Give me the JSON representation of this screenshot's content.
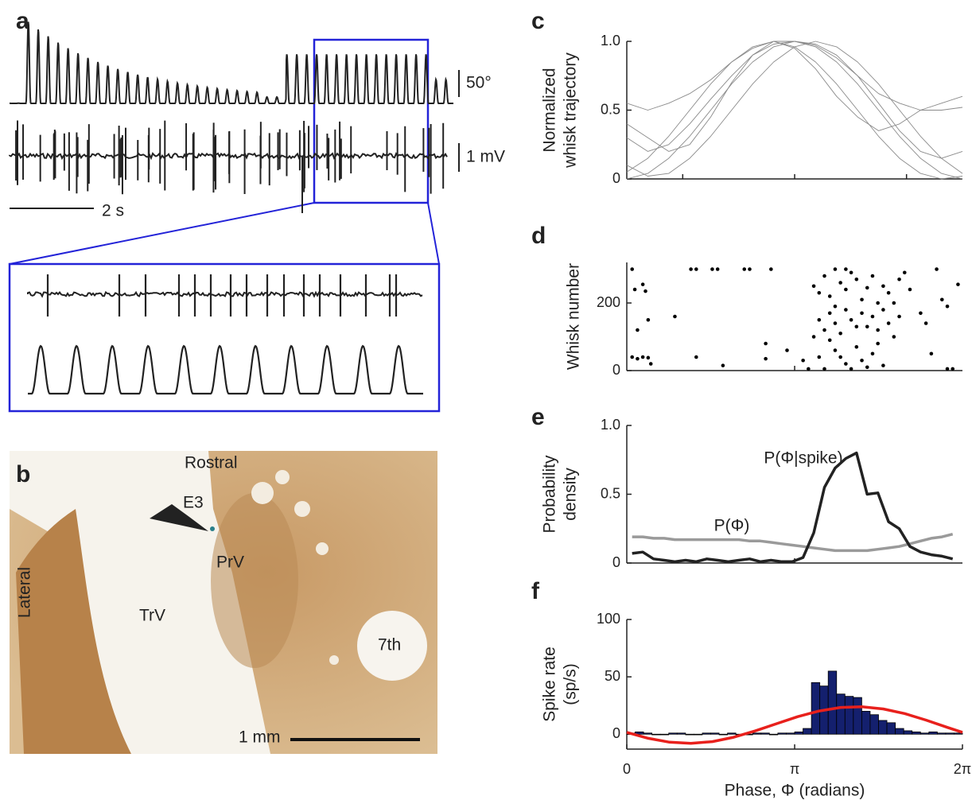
{
  "panel_labels": [
    "a",
    "b",
    "c",
    "d",
    "e",
    "f"
  ],
  "panel_a": {
    "scale_angle": "50°",
    "scale_voltage": "1 mV",
    "scale_time": "2 s"
  },
  "panel_b": {
    "labels": [
      "Rostral",
      "E3",
      "PrV",
      "Lateral",
      "TrV",
      "7th"
    ],
    "scale": "1 mm"
  },
  "chart_data": [
    {
      "type": "line",
      "ylabel": [
        "Normalized",
        "whisk trajectory"
      ],
      "x": [
        0,
        0.393,
        0.785,
        1.178,
        1.571,
        1.963,
        2.356,
        2.749,
        3.142,
        3.534,
        3.927,
        4.32,
        4.712,
        5.105,
        5.498,
        5.89,
        6.283
      ],
      "series": [
        {
          "color": "#8a8a8a",
          "values": [
            0,
            0.04,
            0.15,
            0.31,
            0.5,
            0.69,
            0.85,
            0.96,
            1,
            0.96,
            0.85,
            0.69,
            0.5,
            0.31,
            0.15,
            0.04,
            0
          ]
        },
        {
          "color": "#8a8a8a",
          "values": [
            0.05,
            0.15,
            0.31,
            0.5,
            0.69,
            0.85,
            0.96,
            1,
            0.96,
            0.85,
            0.69,
            0.5,
            0.31,
            0.15,
            0.04,
            0,
            0.02
          ]
        },
        {
          "color": "#8a8a8a",
          "values": [
            0.1,
            0.02,
            0.04,
            0.15,
            0.31,
            0.5,
            0.69,
            0.85,
            0.96,
            1,
            0.96,
            0.85,
            0.69,
            0.5,
            0.31,
            0.15,
            0.04
          ]
        },
        {
          "color": "#8a8a8a",
          "values": [
            0.55,
            0.5,
            0.55,
            0.62,
            0.72,
            0.85,
            0.95,
            1,
            1,
            0.97,
            0.88,
            0.75,
            0.62,
            0.55,
            0.5,
            0.5,
            0.52
          ]
        },
        {
          "color": "#8a8a8a",
          "values": [
            0.3,
            0.2,
            0.25,
            0.4,
            0.58,
            0.75,
            0.9,
            0.98,
            1,
            0.98,
            0.9,
            0.75,
            0.55,
            0.35,
            0.2,
            0.15,
            0.2
          ]
        },
        {
          "color": "#8a8a8a",
          "values": [
            0.4,
            0.3,
            0.2,
            0.25,
            0.45,
            0.7,
            0.9,
            1,
            0.95,
            0.8,
            0.6,
            0.45,
            0.35,
            0.4,
            0.5,
            0.55,
            0.6
          ]
        }
      ],
      "xlim": [
        0,
        6.283
      ],
      "ylim": [
        0,
        1
      ],
      "yticks": [
        0,
        0.5,
        {
          "value": 1,
          "label": "1.0"
        }
      ],
      "xticks": [
        1.047,
        3.142,
        5.236
      ]
    },
    {
      "type": "scatter",
      "ylabel": "Whisk number",
      "color": "#000000",
      "x": [
        0.1,
        0.15,
        0.3,
        0.35,
        0.2,
        0.4,
        0.1,
        0.2,
        0.3,
        0.4,
        0.45,
        0.9,
        1.2,
        1.3,
        1.6,
        1.7,
        2.2,
        2.3,
        2.7,
        1.3,
        1.8,
        2.6,
        2.6,
        3.0,
        3.3,
        3.4,
        3.5,
        3.6,
        3.7,
        3.8,
        3.9,
        4.0,
        4.1,
        4.2,
        4.3,
        4.4,
        4.5,
        4.6,
        4.7,
        4.8,
        4.9,
        5.0,
        3.6,
        3.7,
        3.8,
        3.9,
        4.0,
        4.1,
        4.2,
        4.3,
        4.4,
        4.5,
        4.6,
        4.7,
        4.8,
        3.5,
        3.6,
        3.7,
        3.8,
        3.9,
        4.0,
        4.1,
        4.2,
        4.3,
        4.4,
        4.5,
        4.6,
        4.7,
        4.8,
        4.9,
        5.0,
        5.1,
        5.2,
        5.3,
        5.5,
        5.6,
        5.8,
        5.9,
        6.0,
        6.2,
        5.7,
        6.0,
        6.1,
        5.1,
        4.1,
        3.9
      ],
      "values": [
        300,
        240,
        255,
        235,
        120,
        150,
        40,
        35,
        40,
        38,
        20,
        160,
        300,
        300,
        300,
        300,
        300,
        300,
        300,
        40,
        15,
        80,
        35,
        60,
        30,
        5,
        250,
        230,
        280,
        220,
        190,
        260,
        240,
        150,
        130,
        210,
        245,
        160,
        120,
        250,
        140,
        100,
        150,
        120,
        90,
        60,
        40,
        20,
        5,
        70,
        30,
        10,
        50,
        80,
        15,
        100,
        40,
        5,
        170,
        140,
        110,
        180,
        290,
        270,
        170,
        130,
        280,
        200,
        180,
        230,
        200,
        160,
        290,
        240,
        170,
        140,
        300,
        210,
        190,
        255,
        50,
        5,
        5,
        270,
        300,
        300
      ],
      "xlim": [
        0,
        6.283
      ],
      "ylim": [
        0,
        320
      ],
      "yticks": [
        0,
        200
      ],
      "xticks": [
        3.142
      ]
    },
    {
      "type": "line",
      "ylabel": [
        "Probability",
        "density"
      ],
      "x": [
        0.1,
        0.3,
        0.5,
        0.7,
        0.9,
        1.1,
        1.3,
        1.5,
        1.7,
        1.9,
        2.1,
        2.3,
        2.5,
        2.7,
        2.9,
        3.1,
        3.3,
        3.5,
        3.7,
        3.9,
        4.1,
        4.3,
        4.5,
        4.7,
        4.9,
        5.1,
        5.3,
        5.5,
        5.7,
        5.9,
        6.1
      ],
      "series": [
        {
          "name": "P(Φ)",
          "color": "#9a9a9a",
          "values": [
            0.19,
            0.19,
            0.18,
            0.18,
            0.17,
            0.17,
            0.17,
            0.17,
            0.17,
            0.17,
            0.17,
            0.16,
            0.16,
            0.15,
            0.14,
            0.13,
            0.12,
            0.11,
            0.1,
            0.09,
            0.09,
            0.09,
            0.09,
            0.1,
            0.11,
            0.12,
            0.14,
            0.16,
            0.18,
            0.19,
            0.21
          ]
        },
        {
          "name": "P(Φ|spike)",
          "color": "#222222",
          "values": [
            0.07,
            0.08,
            0.03,
            0.02,
            0.01,
            0.02,
            0.01,
            0.03,
            0.02,
            0.01,
            0.02,
            0.03,
            0.01,
            0.02,
            0.01,
            0.01,
            0.04,
            0.22,
            0.55,
            0.69,
            0.76,
            0.8,
            0.5,
            0.51,
            0.3,
            0.25,
            0.12,
            0.08,
            0.06,
            0.05,
            0.03
          ]
        }
      ],
      "xlim": [
        0,
        6.283
      ],
      "ylim": [
        0,
        1
      ],
      "yticks": [
        0,
        0.5,
        {
          "value": 1,
          "label": "1.0"
        }
      ],
      "xticks": [
        3.142
      ]
    },
    {
      "type": "histogram",
      "ylabel": [
        "Spike rate",
        "(sp/s)"
      ],
      "xlabel": "Phase, Φ (radians)",
      "color": "#14206e",
      "bins": [
        0,
        0.157,
        0.314,
        0.471,
        0.628,
        0.785,
        0.942,
        1.1,
        1.257,
        1.414,
        1.571,
        1.728,
        1.885,
        2.042,
        2.199,
        2.356,
        2.513,
        2.67,
        2.827,
        2.985,
        3.142,
        3.299,
        3.456,
        3.613,
        3.77,
        3.927,
        4.084,
        4.241,
        4.398,
        4.555,
        4.712,
        4.869,
        5.027,
        5.184,
        5.341,
        5.498,
        5.655,
        5.812,
        5.969,
        6.126,
        6.283
      ],
      "values": [
        1,
        2,
        1,
        0,
        0,
        1,
        1,
        0,
        0,
        1,
        1,
        0,
        1,
        0,
        0,
        1,
        1,
        0,
        1,
        1,
        2,
        5,
        45,
        42,
        55,
        35,
        33,
        32,
        20,
        17,
        12,
        10,
        5,
        3,
        2,
        1,
        2,
        1,
        1,
        1
      ],
      "fit": {
        "color": "#e8201c",
        "x": [
          0,
          0.4,
          0.8,
          1.2,
          1.6,
          2.0,
          2.4,
          2.8,
          3.2,
          3.6,
          4.0,
          4.4,
          4.8,
          5.2,
          5.6,
          6.0,
          6.283
        ],
        "values": [
          1.6,
          -3.6,
          -7.0,
          -8.0,
          -6.5,
          -2.7,
          2.8,
          9.1,
          15.3,
          20.2,
          23.3,
          23.9,
          22.0,
          18.0,
          12.3,
          5.9,
          1.6
        ]
      },
      "xlim": [
        0,
        6.283
      ],
      "ylim": [
        -13,
        100
      ],
      "yticks": [
        0,
        50,
        100
      ],
      "xticks": [
        0,
        {
          "value": 3.142,
          "label": "π"
        },
        {
          "value": 6.283,
          "label": "2π"
        }
      ]
    }
  ]
}
